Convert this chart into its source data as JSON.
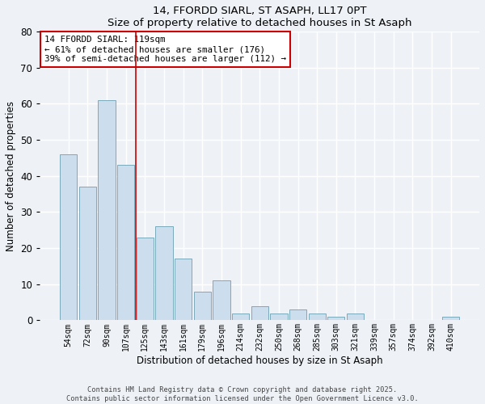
{
  "title1": "14, FFORDD SIARL, ST ASAPH, LL17 0PT",
  "title2": "Size of property relative to detached houses in St Asaph",
  "xlabel": "Distribution of detached houses by size in St Asaph",
  "ylabel": "Number of detached properties",
  "bar_color": "#ccdded",
  "bar_edge_color": "#7aaabb",
  "categories": [
    "54sqm",
    "72sqm",
    "90sqm",
    "107sqm",
    "125sqm",
    "143sqm",
    "161sqm",
    "179sqm",
    "196sqm",
    "214sqm",
    "232sqm",
    "250sqm",
    "268sqm",
    "285sqm",
    "303sqm",
    "321sqm",
    "339sqm",
    "357sqm",
    "374sqm",
    "392sqm",
    "410sqm"
  ],
  "values": [
    46,
    37,
    61,
    43,
    23,
    26,
    17,
    8,
    11,
    2,
    4,
    2,
    3,
    2,
    1,
    2,
    0,
    0,
    0,
    0,
    1
  ],
  "vline_x": 3.5,
  "vline_color": "#cc0000",
  "annotation_text": "14 FFORDD SIARL: 119sqm\n← 61% of detached houses are smaller (176)\n39% of semi-detached houses are larger (112) →",
  "ylim": [
    0,
    80
  ],
  "yticks": [
    0,
    10,
    20,
    30,
    40,
    50,
    60,
    70,
    80
  ],
  "background_color": "#eef2f7",
  "grid_color": "#ffffff",
  "footer1": "Contains HM Land Registry data © Crown copyright and database right 2025.",
  "footer2": "Contains public sector information licensed under the Open Government Licence v3.0."
}
